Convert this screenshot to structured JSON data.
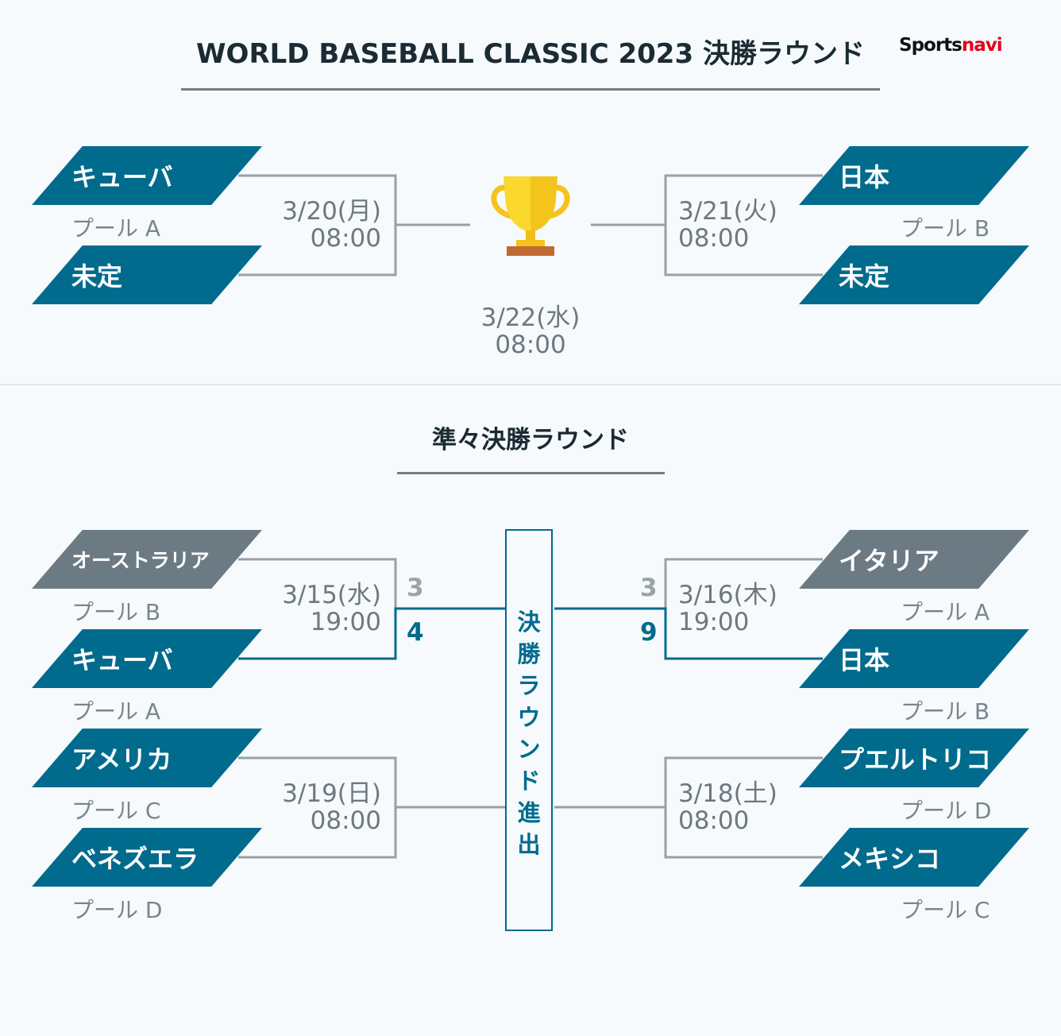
{
  "header": {
    "title": "WORLD BASEBALL CLASSIC 2023 決勝ラウンド",
    "logo_sports": "Sports",
    "logo_navi": "navi"
  },
  "final_round": {
    "semi_left": {
      "date": "3/20(月)",
      "time": "08:00",
      "team1": {
        "name": "キューバ",
        "pool": "プール A"
      },
      "team2": {
        "name": "未定"
      }
    },
    "semi_right": {
      "date": "3/21(火)",
      "time": "08:00",
      "team1": {
        "name": "日本",
        "pool": "プール B"
      },
      "team2": {
        "name": "未定"
      }
    },
    "final": {
      "date": "3/22(水)",
      "time": "08:00",
      "icon": "trophy-icon"
    }
  },
  "quarterfinal": {
    "title": "準々決勝ラウンド",
    "advance_label": [
      "決",
      "勝",
      "ラ",
      "ウ",
      "ン",
      "ド",
      "進",
      "出"
    ],
    "qf1": {
      "date": "3/15(水)",
      "time": "19:00",
      "team1": {
        "name": "オーストラリア",
        "pool": "プール B",
        "score": "3"
      },
      "team2": {
        "name": "キューバ",
        "pool": "プール A",
        "score": "4"
      }
    },
    "qf2": {
      "date": "3/16(木)",
      "time": "19:00",
      "team1": {
        "name": "イタリア",
        "pool": "プール A",
        "score": "3"
      },
      "team2": {
        "name": "日本",
        "pool": "プール B",
        "score": "9"
      }
    },
    "qf3": {
      "date": "3/19(日)",
      "time": "08:00",
      "team1": {
        "name": "アメリカ",
        "pool": "プール C"
      },
      "team2": {
        "name": "ベネズエラ",
        "pool": "プール D"
      }
    },
    "qf4": {
      "date": "3/18(土)",
      "time": "08:00",
      "team1": {
        "name": "プエルトリコ",
        "pool": "プール D"
      },
      "team2": {
        "name": "メキシコ",
        "pool": "プール C"
      }
    }
  },
  "colors": {
    "win": "#006b8d",
    "lose": "#6c7a83",
    "line": "#9aa0a5"
  }
}
